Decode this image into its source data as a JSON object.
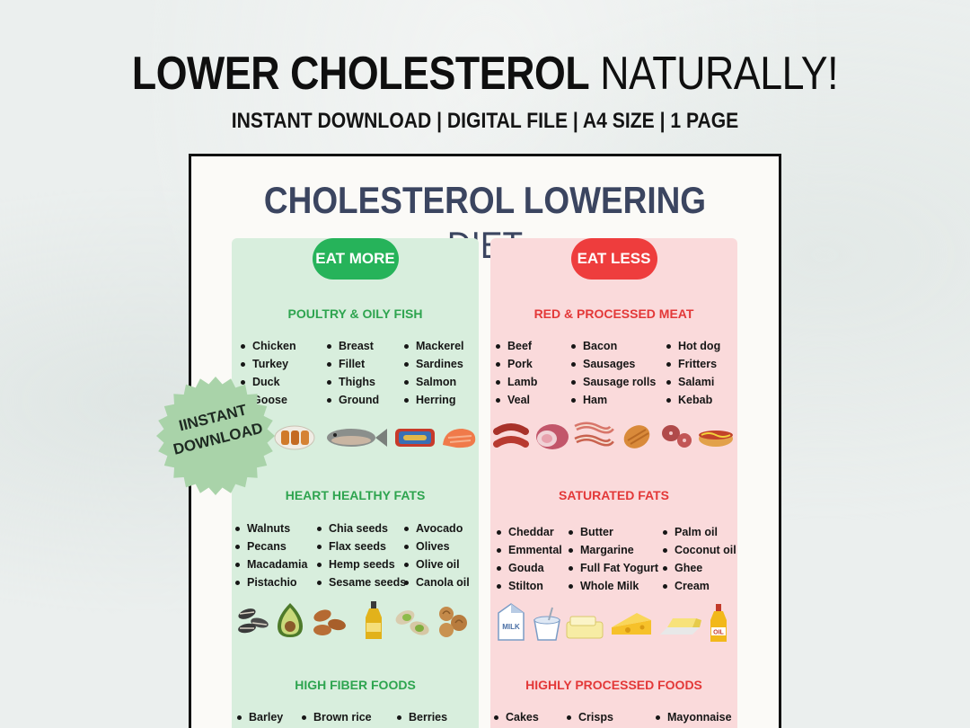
{
  "header": {
    "title_bold": "LOWER CHOLESTEROL",
    "title_light": "NATURALLY!",
    "subtitle": "INSTANT DOWNLOAD | DIGITAL FILE | A4 SIZE | 1 PAGE"
  },
  "sheet": {
    "title_bold": "CHOLESTEROL LOWERING",
    "title_light": "DIET",
    "eat_more": {
      "label": "EAT MORE",
      "sections": [
        {
          "title": "POULTRY & OILY FISH",
          "columns": [
            [
              "Chicken",
              "Turkey",
              "Duck",
              "Goose"
            ],
            [
              "Breast",
              "Fillet",
              "Thighs",
              "Ground"
            ],
            [
              "Mackerel",
              "Sardines",
              "Salmon",
              "Herring"
            ]
          ],
          "icons": [
            "chicken-skewer-icon",
            "fish-icon",
            "sardine-tin-icon",
            "salmon-fillet-icon"
          ]
        },
        {
          "title": "HEART HEALTHY FATS",
          "columns": [
            [
              "Walnuts",
              "Pecans",
              "Macadamia",
              "Pistachio"
            ],
            [
              "Chia seeds",
              "Flax seeds",
              "Hemp seeds",
              "Sesame seeds"
            ],
            [
              "Avocado",
              "Olives",
              "Olive oil",
              "Canola oil"
            ]
          ],
          "icons": [
            "sunflower-seeds-icon",
            "avocado-icon",
            "almonds-icon",
            "olive-oil-bottle-icon",
            "pistachio-icon",
            "walnuts-icon"
          ]
        },
        {
          "title": "HIGH FIBER FOODS",
          "columns": [
            [
              "Barley"
            ],
            [
              "Brown rice"
            ],
            [
              "Berries"
            ]
          ]
        }
      ]
    },
    "eat_less": {
      "label": "EAT LESS",
      "sections": [
        {
          "title": "RED & PROCESSED MEAT",
          "columns": [
            [
              "Beef",
              "Pork",
              "Lamb",
              "Veal"
            ],
            [
              "Bacon",
              "Sausages",
              "Sausage rolls",
              "Ham"
            ],
            [
              "Hot dog",
              "Fritters",
              "Salami",
              "Kebab"
            ]
          ],
          "icons": [
            "sausages-icon",
            "ham-icon",
            "bacon-icon",
            "sausage-roll-icon",
            "salami-icon",
            "hot-dog-icon"
          ]
        },
        {
          "title": "SATURATED FATS",
          "columns": [
            [
              "Cheddar",
              "Emmental",
              "Gouda",
              "Stilton"
            ],
            [
              "Butter",
              "Margarine",
              "Full Fat Yogurt",
              "Whole Milk"
            ],
            [
              "Palm oil",
              "Coconut oil",
              "Ghee",
              "Cream"
            ]
          ],
          "icons": [
            "milk-carton-icon",
            "yogurt-icon",
            "margarine-icon",
            "cheese-icon",
            "butter-icon",
            "oil-bottle-icon"
          ],
          "milk_label": "MILK",
          "oil_label": "OIL"
        },
        {
          "title": "HIGHLY PROCESSED FOODS",
          "columns": [
            [
              "Cakes"
            ],
            [
              "Crisps"
            ],
            [
              "Mayonnaise"
            ]
          ]
        }
      ]
    }
  },
  "badge": {
    "line1": "IINSTANT",
    "line2": "DOWNLOAD",
    "color": "#a9d3a9"
  }
}
